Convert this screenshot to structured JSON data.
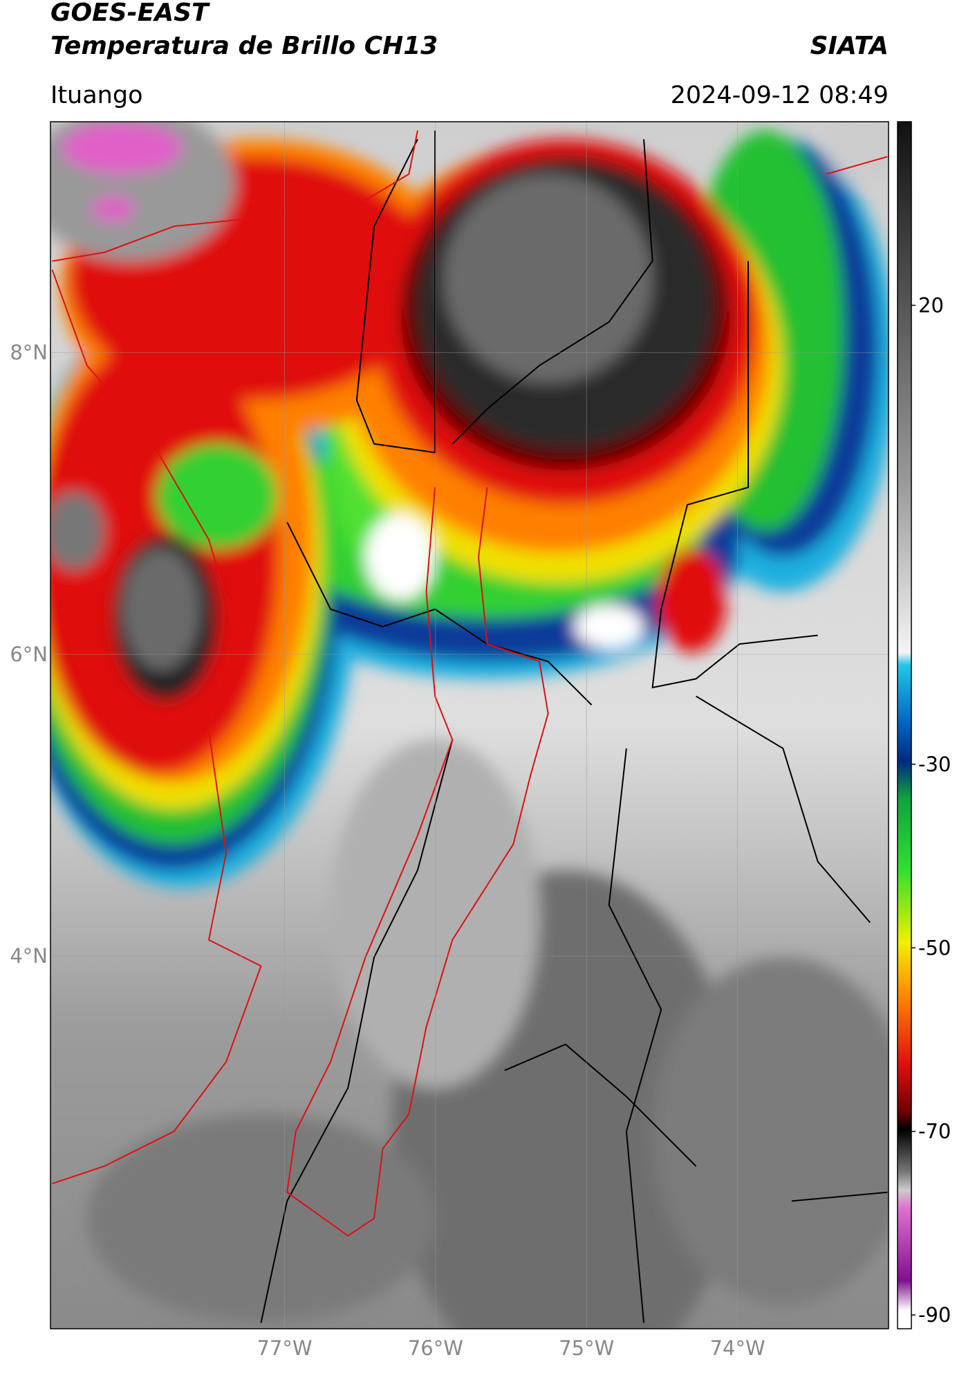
{
  "header": {
    "title": "GOES-EAST",
    "subtitle": "Temperatura de Brillo CH13",
    "source": "SIATA",
    "location": "Ituango",
    "datetime": "2024-09-12 08:49"
  },
  "map": {
    "lon_range": [
      -78.55,
      -73.0
    ],
    "lat_range": [
      1.53,
      9.53
    ],
    "lat_ticks": [
      {
        "value": 8,
        "label": "8°N"
      },
      {
        "value": 6,
        "label": "6°N"
      },
      {
        "value": 4,
        "label": "4°N"
      }
    ],
    "lon_ticks": [
      {
        "value": -77,
        "label": "77°W"
      },
      {
        "value": -76,
        "label": "76°W"
      },
      {
        "value": -75,
        "label": "75°W"
      },
      {
        "value": -74,
        "label": "74°W"
      }
    ]
  },
  "colorbar": {
    "range": [
      -91.5,
      40
    ],
    "ticks": [
      20,
      -30,
      -50,
      -70,
      -90
    ]
  }
}
